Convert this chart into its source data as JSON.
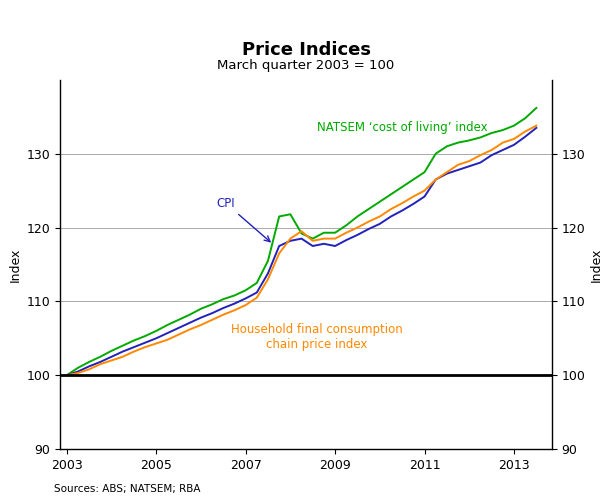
{
  "title": "Price Indices",
  "subtitle": "March quarter 2003 = 100",
  "ylabel_left": "Index",
  "ylabel_right": "Index",
  "source": "Sources: ABS; NATSEM; RBA",
  "ylim": [
    90,
    140
  ],
  "yticks": [
    90,
    100,
    110,
    120,
    130
  ],
  "xlim_start": 2002.85,
  "xlim_end": 2013.85,
  "xticks": [
    2003,
    2005,
    2007,
    2009,
    2011,
    2013
  ],
  "colors": {
    "natsem": "#00aa00",
    "cpi": "#2222bb",
    "hfce": "#ff8800"
  },
  "labels": {
    "natsem": "NATSEM ‘cost of living’ index",
    "cpi": "CPI",
    "hfce": "Household final consumption\nchain price index"
  },
  "natsem_x": [
    2003.0,
    2003.25,
    2003.5,
    2003.75,
    2004.0,
    2004.25,
    2004.5,
    2004.75,
    2005.0,
    2005.25,
    2005.5,
    2005.75,
    2006.0,
    2006.25,
    2006.5,
    2006.75,
    2007.0,
    2007.25,
    2007.5,
    2007.75,
    2008.0,
    2008.25,
    2008.5,
    2008.75,
    2009.0,
    2009.25,
    2009.5,
    2009.75,
    2010.0,
    2010.25,
    2010.5,
    2010.75,
    2011.0,
    2011.25,
    2011.5,
    2011.75,
    2012.0,
    2012.25,
    2012.5,
    2012.75,
    2013.0,
    2013.25,
    2013.5
  ],
  "natsem_y": [
    100.0,
    101.0,
    101.8,
    102.5,
    103.3,
    104.0,
    104.7,
    105.3,
    106.0,
    106.8,
    107.5,
    108.2,
    109.0,
    109.6,
    110.3,
    110.8,
    111.5,
    112.5,
    115.5,
    121.5,
    121.8,
    119.2,
    118.5,
    119.3,
    119.3,
    120.3,
    121.5,
    122.5,
    123.5,
    124.5,
    125.5,
    126.5,
    127.5,
    130.0,
    131.0,
    131.5,
    131.8,
    132.2,
    132.8,
    133.2,
    133.8,
    134.8,
    136.2
  ],
  "cpi_x": [
    2003.0,
    2003.25,
    2003.5,
    2003.75,
    2004.0,
    2004.25,
    2004.5,
    2004.75,
    2005.0,
    2005.25,
    2005.5,
    2005.75,
    2006.0,
    2006.25,
    2006.5,
    2006.75,
    2007.0,
    2007.25,
    2007.5,
    2007.75,
    2008.0,
    2008.25,
    2008.5,
    2008.75,
    2009.0,
    2009.25,
    2009.5,
    2009.75,
    2010.0,
    2010.25,
    2010.5,
    2010.75,
    2011.0,
    2011.25,
    2011.5,
    2011.75,
    2012.0,
    2012.25,
    2012.5,
    2012.75,
    2013.0,
    2013.25,
    2013.5
  ],
  "cpi_y": [
    100.0,
    100.5,
    101.2,
    101.8,
    102.5,
    103.2,
    103.8,
    104.4,
    105.0,
    105.7,
    106.4,
    107.1,
    107.8,
    108.4,
    109.1,
    109.7,
    110.4,
    111.2,
    113.8,
    117.5,
    118.2,
    118.5,
    117.5,
    117.8,
    117.5,
    118.3,
    119.0,
    119.8,
    120.5,
    121.5,
    122.3,
    123.2,
    124.2,
    126.5,
    127.3,
    127.8,
    128.3,
    128.8,
    129.8,
    130.5,
    131.2,
    132.3,
    133.5
  ],
  "hfce_x": [
    2003.0,
    2003.25,
    2003.5,
    2003.75,
    2004.0,
    2004.25,
    2004.5,
    2004.75,
    2005.0,
    2005.25,
    2005.5,
    2005.75,
    2006.0,
    2006.25,
    2006.5,
    2006.75,
    2007.0,
    2007.25,
    2007.5,
    2007.75,
    2008.0,
    2008.25,
    2008.5,
    2008.75,
    2009.0,
    2009.25,
    2009.5,
    2009.75,
    2010.0,
    2010.25,
    2010.5,
    2010.75,
    2011.0,
    2011.25,
    2011.5,
    2011.75,
    2012.0,
    2012.25,
    2012.5,
    2012.75,
    2013.0,
    2013.25,
    2013.5
  ],
  "hfce_y": [
    100.0,
    100.3,
    100.8,
    101.5,
    102.0,
    102.5,
    103.2,
    103.8,
    104.3,
    104.8,
    105.5,
    106.2,
    106.8,
    107.5,
    108.2,
    108.8,
    109.5,
    110.5,
    113.0,
    116.5,
    118.5,
    119.5,
    118.2,
    118.5,
    118.5,
    119.3,
    120.0,
    120.8,
    121.5,
    122.5,
    123.3,
    124.2,
    125.0,
    126.5,
    127.5,
    128.5,
    129.0,
    129.8,
    130.5,
    131.5,
    132.0,
    133.0,
    133.8
  ]
}
